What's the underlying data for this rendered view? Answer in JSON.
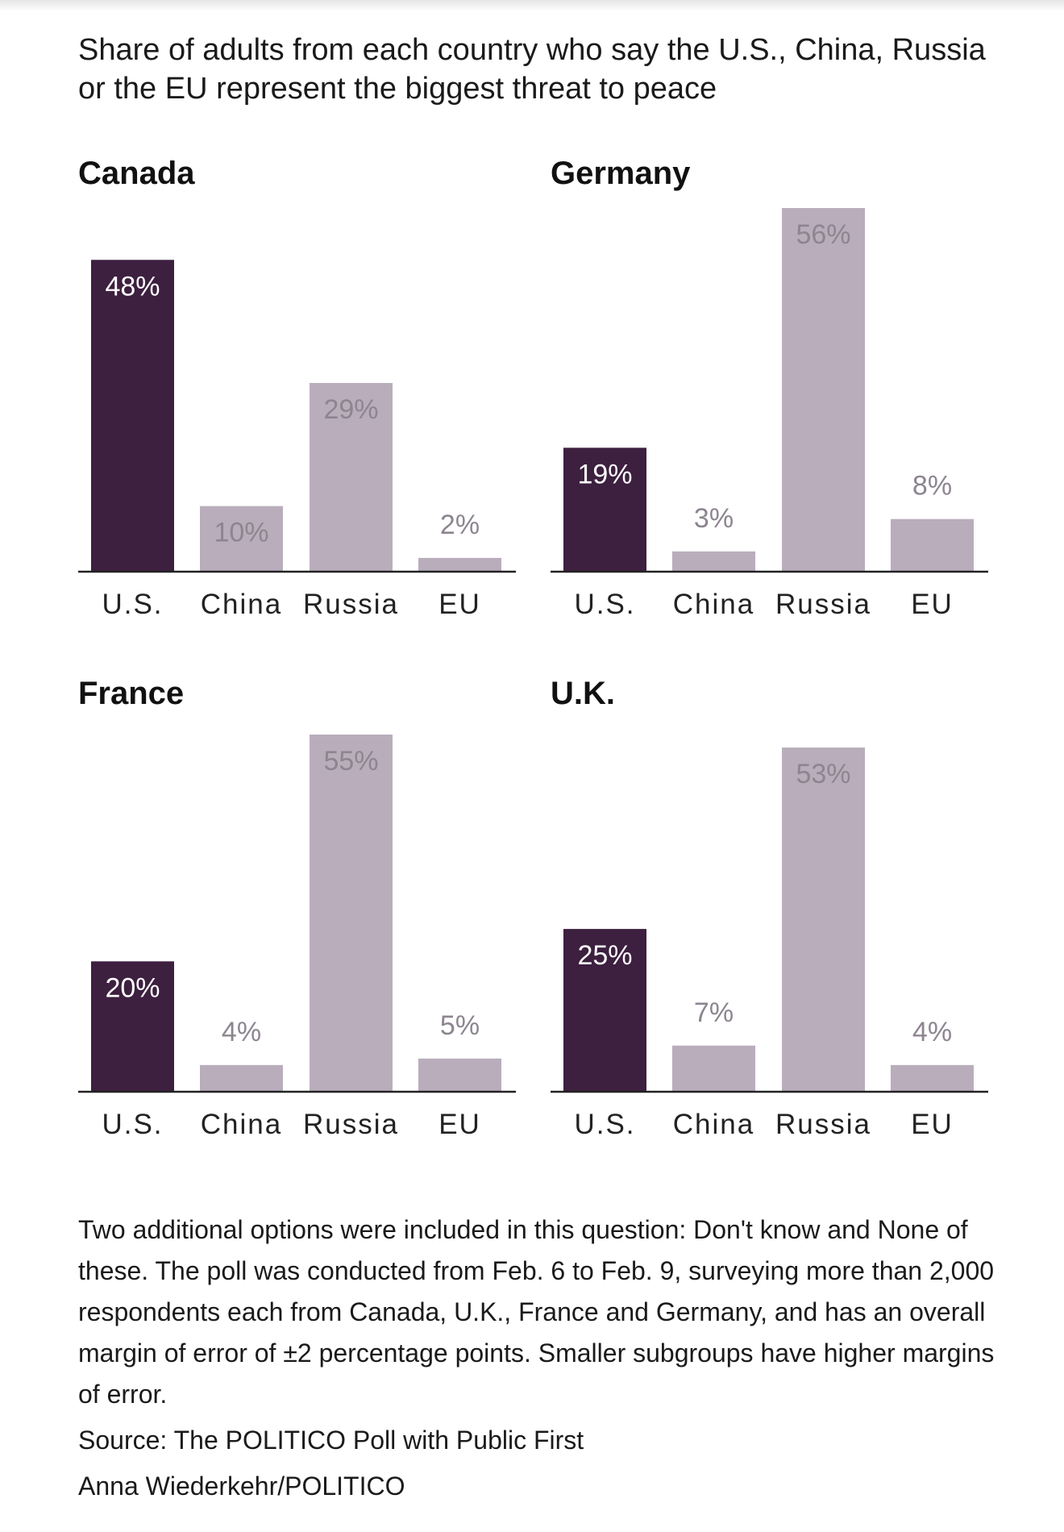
{
  "subtitle": "Share of adults from each country who say the U.S., China, Russia or the EU represent the biggest threat to peace",
  "colors": {
    "highlight": "#3d1f3f",
    "muted": "#b9adbc",
    "label_on_dark": "#ffffff",
    "label_on_muted": "#8d8590",
    "axis": "#222222",
    "category_text": "#222222"
  },
  "chart_data": [
    {
      "type": "bar",
      "title": "Canada",
      "categories": [
        "U.S.",
        "China",
        "Russia",
        "EU"
      ],
      "values": [
        48,
        10,
        29,
        2
      ],
      "labels": [
        "48%",
        "10%",
        "29%",
        "2%"
      ],
      "highlight_index": 0,
      "ylim": [
        0,
        56
      ]
    },
    {
      "type": "bar",
      "title": "Germany",
      "categories": [
        "U.S.",
        "China",
        "Russia",
        "EU"
      ],
      "values": [
        19,
        3,
        56,
        8
      ],
      "labels": [
        "19%",
        "3%",
        "56%",
        "8%"
      ],
      "highlight_index": 0,
      "ylim": [
        0,
        56
      ]
    },
    {
      "type": "bar",
      "title": "France",
      "categories": [
        "U.S.",
        "China",
        "Russia",
        "EU"
      ],
      "values": [
        20,
        4,
        55,
        5
      ],
      "labels": [
        "20%",
        "4%",
        "55%",
        "5%"
      ],
      "highlight_index": 0,
      "ylim": [
        0,
        56
      ]
    },
    {
      "type": "bar",
      "title": "U.K.",
      "categories": [
        "U.S.",
        "China",
        "Russia",
        "EU"
      ],
      "values": [
        25,
        7,
        53,
        4
      ],
      "labels": [
        "25%",
        "7%",
        "53%",
        "4%"
      ],
      "highlight_index": 0,
      "ylim": [
        0,
        56
      ]
    }
  ],
  "footnote": "Two additional options were included in this question: Don't know and None of these. The poll was conducted from Feb. 6 to Feb. 9, surveying more than 2,000 respondents each from Canada, U.K., France and Germany, and has an overall margin of error of ±2 percentage points. Smaller subgroups have higher margins of error.",
  "source": "Source: The POLITICO Poll with Public First",
  "credit": "Anna Wiederkehr/POLITICO"
}
